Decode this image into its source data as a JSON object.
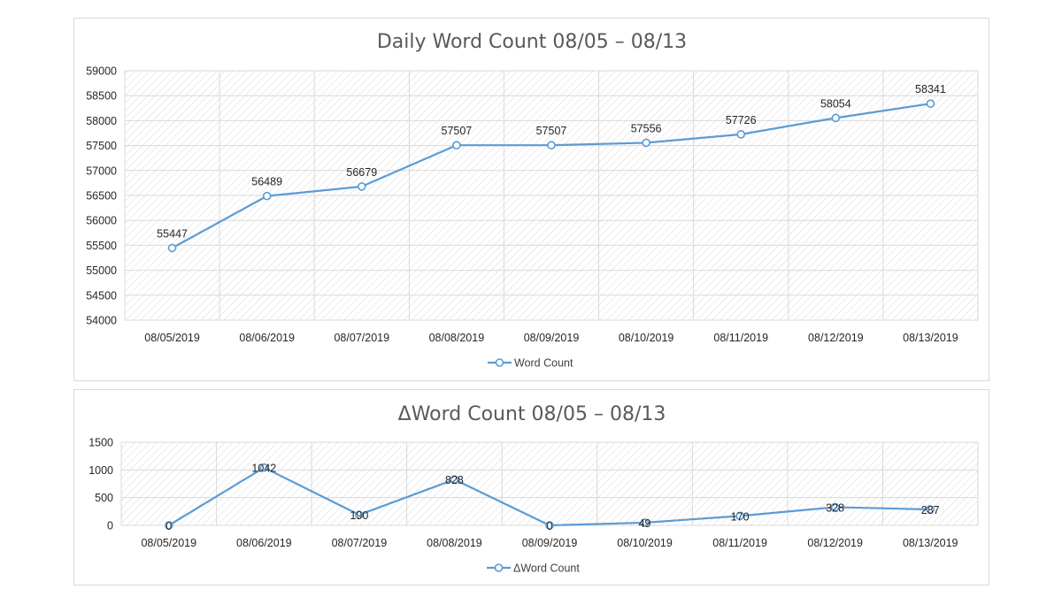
{
  "colors": {
    "series": "#5b9bd5",
    "grid": "#d9d9d9",
    "hatch": "#dedede",
    "title": "#595959",
    "text": "#262626"
  },
  "chart_data": [
    {
      "type": "line",
      "title": "Daily Word Count 08/05 – 08/13",
      "categories": [
        "08/05/2019",
        "08/06/2019",
        "08/07/2019",
        "08/08/2019",
        "08/09/2019",
        "08/10/2019",
        "08/11/2019",
        "08/12/2019",
        "08/13/2019"
      ],
      "series": [
        {
          "name": "Word Count",
          "values": [
            55447,
            56489,
            56679,
            57507,
            57507,
            57556,
            57726,
            58054,
            58341
          ]
        }
      ],
      "data_labels": [
        "55447",
        "56489",
        "56679",
        "57507",
        "57507",
        "57556",
        "57726",
        "58054",
        "58341"
      ],
      "yticks": [
        "54000",
        "54500",
        "55000",
        "55500",
        "56000",
        "56500",
        "57000",
        "57500",
        "58000",
        "58500",
        "59000"
      ],
      "ylim": [
        54000,
        59000
      ],
      "grid": true,
      "legend": "bottom",
      "xlabel": "",
      "ylabel": ""
    },
    {
      "type": "line",
      "title": "ΔWord Count  08/05 – 08/13",
      "categories": [
        "08/05/2019",
        "08/06/2019",
        "08/07/2019",
        "08/08/2019",
        "08/09/2019",
        "08/10/2019",
        "08/11/2019",
        "08/12/2019",
        "08/13/2019"
      ],
      "series": [
        {
          "name": "ΔWord Count",
          "values": [
            0,
            1042,
            190,
            828,
            0,
            49,
            170,
            328,
            287
          ]
        }
      ],
      "data_labels": [
        "0",
        "1042",
        "190",
        "828",
        "0",
        "49",
        "170",
        "328",
        "287"
      ],
      "yticks": [
        "0",
        "500",
        "1000",
        "1500"
      ],
      "ylim": [
        0,
        1500
      ],
      "grid": true,
      "legend": "bottom",
      "xlabel": "",
      "ylabel": ""
    }
  ]
}
